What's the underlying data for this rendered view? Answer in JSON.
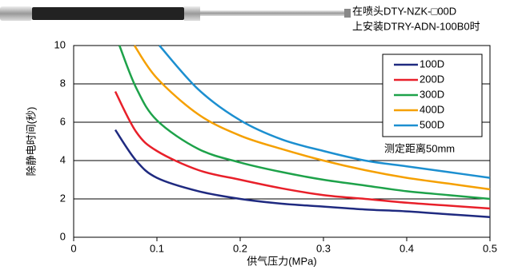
{
  "chart_data": {
    "type": "line",
    "note_lines": [
      "在喷头DTY-NZK-□00D",
      "上安装DTRY-ADN-100B0时"
    ],
    "annotation": "测定距离50mm",
    "x_label": "供气压力(MPa)",
    "y_label": "除静电时间(秒)",
    "xlim": [
      0,
      0.5
    ],
    "xticks": [
      0,
      0.1,
      0.2,
      0.3,
      0.4,
      0.5
    ],
    "ylim": [
      0,
      10
    ],
    "yticks": [
      0,
      2,
      4,
      6,
      8,
      10
    ],
    "grid": true,
    "legend": "upper right",
    "series": [
      {
        "name": "100D",
        "color": "#1f2a80",
        "x": [
          0.05,
          0.075,
          0.1,
          0.15,
          0.2,
          0.25,
          0.3,
          0.35,
          0.4,
          0.45,
          0.5
        ],
        "values": [
          5.6,
          4.0,
          3.1,
          2.4,
          2.0,
          1.75,
          1.6,
          1.45,
          1.35,
          1.2,
          1.05
        ]
      },
      {
        "name": "200D",
        "color": "#e8202a",
        "x": [
          0.05,
          0.075,
          0.1,
          0.15,
          0.2,
          0.25,
          0.3,
          0.35,
          0.4,
          0.45,
          0.5
        ],
        "values": [
          7.6,
          5.5,
          4.5,
          3.5,
          3.0,
          2.55,
          2.2,
          2.0,
          1.8,
          1.65,
          1.5
        ]
      },
      {
        "name": "300D",
        "color": "#1ea24a",
        "x": [
          0.055,
          0.075,
          0.1,
          0.15,
          0.2,
          0.25,
          0.3,
          0.35,
          0.4,
          0.45,
          0.5
        ],
        "values": [
          10,
          7.8,
          6.1,
          4.6,
          3.9,
          3.4,
          3.0,
          2.7,
          2.4,
          2.2,
          2.0
        ]
      },
      {
        "name": "400D",
        "color": "#f5a000",
        "x": [
          0.073,
          0.1,
          0.15,
          0.2,
          0.25,
          0.3,
          0.35,
          0.4,
          0.45,
          0.5
        ],
        "values": [
          10,
          8.3,
          6.4,
          5.3,
          4.6,
          4.0,
          3.5,
          3.1,
          2.8,
          2.5
        ]
      },
      {
        "name": "500D",
        "color": "#1c8fd0",
        "x": [
          0.103,
          0.15,
          0.2,
          0.25,
          0.3,
          0.35,
          0.4,
          0.45,
          0.5
        ],
        "values": [
          10,
          7.7,
          6.1,
          5.1,
          4.5,
          4.0,
          3.7,
          3.4,
          3.1
        ]
      }
    ]
  }
}
